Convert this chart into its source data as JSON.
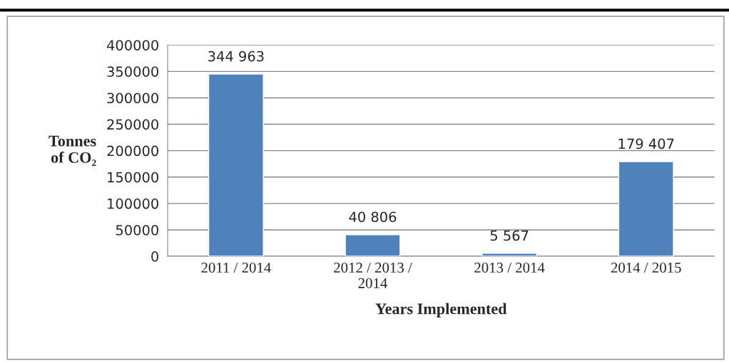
{
  "chart_data": {
    "type": "bar",
    "ylabel": "Tonnes\nof CO₂",
    "xlabel": "Years Implemented",
    "categories": [
      "2011 / 2014",
      "2012 / 2013 /\n2014",
      "2013 / 2014",
      "2014 / 2015"
    ],
    "values": [
      344963,
      40806,
      5567,
      179407
    ],
    "value_labels": [
      "344 963",
      "40 806",
      "5 567",
      "179 407"
    ],
    "color": "#4f81bd",
    "ylim": [
      0,
      400000
    ],
    "yticks": [
      0,
      50000,
      100000,
      150000,
      200000,
      250000,
      300000,
      350000,
      400000
    ],
    "grid": "y"
  }
}
